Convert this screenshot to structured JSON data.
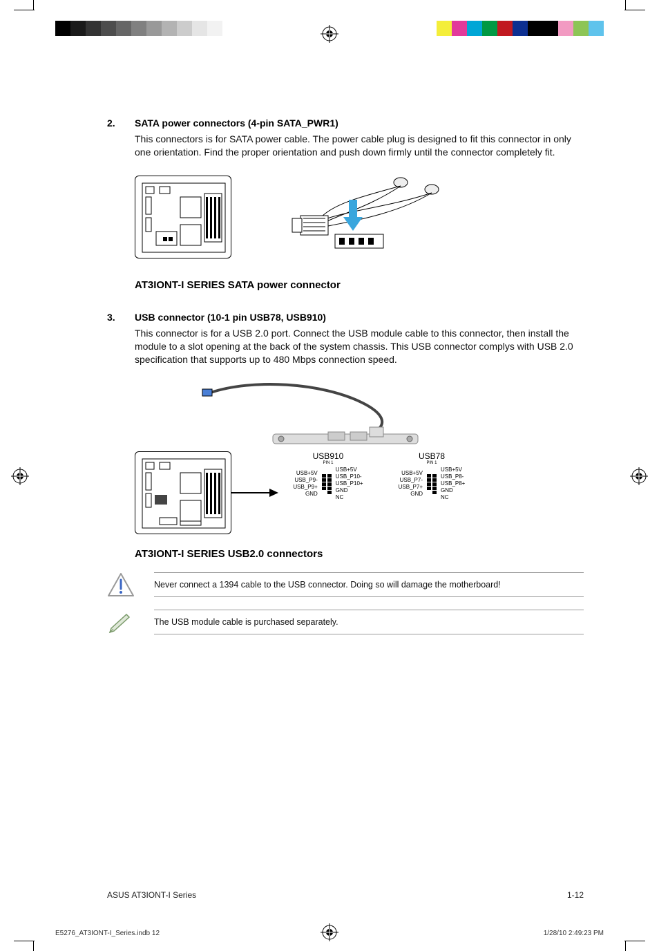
{
  "colorbar_left": [
    "#000000",
    "#1a1a1a",
    "#333333",
    "#4d4d4d",
    "#666666",
    "#808080",
    "#999999",
    "#b3b3b3",
    "#cccccc",
    "#e5e5e5",
    "#f2f2f2",
    "#ffffff",
    "#ffffff"
  ],
  "colorbar_right": [
    "#f4ee3a",
    "#e23a9a",
    "#00a6d6",
    "#009944",
    "#c11920",
    "#0d2f91",
    "#000000",
    "#000000",
    "#f29ac2",
    "#8dc556",
    "#5fc3ec"
  ],
  "section2": {
    "number": "2.",
    "title": "SATA power connectors (4-pin SATA_PWR1)",
    "body": "This connectors is for SATA power cable. The power cable plug is designed to fit this connector in only one orientation. Find the proper orientation and push down firmly until the connector completely fit.",
    "caption": "AT3IONT-I SERIES SATA power connector"
  },
  "section3": {
    "number": "3.",
    "title": "USB connector (10-1 pin USB78, USB910)",
    "body": "This connector is for a USB 2.0 port. Connect the USB module cable to this connector, then install the module to a slot opening at the back of the system chassis. This USB connector complys with USB 2.0 specification that supports up to 480 Mbps connection speed.",
    "caption": "AT3IONT-I SERIES USB2.0 connectors"
  },
  "pinouts": {
    "left": {
      "header_label": "USB910",
      "pin1_label": "PIN 1",
      "left_labels": [
        "USB+5V",
        "USB_P9-",
        "USB_P9+",
        "GND"
      ],
      "right_labels": [
        "USB+5V",
        "USB_P10-",
        "USB_P10+",
        "GND",
        "NC"
      ]
    },
    "right": {
      "header_label": "USB78",
      "pin1_label": "PIN 1",
      "left_labels": [
        "USB+5V",
        "USB_P7-",
        "USB_P7+",
        "GND"
      ],
      "right_labels": [
        "USB+5V",
        "USB_P8-",
        "USB_P8+",
        "GND",
        "NC"
      ]
    }
  },
  "warning_note": "Never connect a 1394 cable to the USB connector. Doing so will damage the motherboard!",
  "info_note": "The USB module cable is purchased separately.",
  "footer_left": "ASUS AT3IONT-I Series",
  "footer_right": "1-12",
  "slug_left": "E5276_AT3IONT-I_Series.indb   12",
  "slug_right": "1/28/10   2:49:23 PM",
  "accent_arrow_color": "#3aa6dd"
}
